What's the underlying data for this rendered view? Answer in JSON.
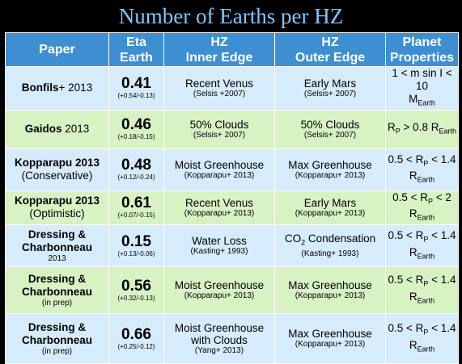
{
  "title": "Number of Earths per HZ",
  "headers": {
    "paper": "Paper",
    "eta_1": "Eta",
    "eta_2": "Earth",
    "inner_1": "HZ",
    "inner_2": "Inner Edge",
    "outer_1": "HZ",
    "outer_2": "Outer Edge",
    "planet_1": "Planet",
    "planet_2": "Properties"
  },
  "rows": [
    {
      "paper_bold": "Bonfils",
      "paper_rest": "+ 2013",
      "paper_line2": "",
      "paper_sub": "",
      "eta": "0.41",
      "eta_err": "(+0.54/-0.13)",
      "inner": "Recent Venus",
      "inner_ref": "(Selsis +2007)",
      "outer": "Early Mars",
      "outer_ref": "(Selsis+ 2007)",
      "prop_1": "1 < m sin I < 10",
      "prop_2": "M",
      "prop_2_sub": "Earth"
    },
    {
      "paper_bold": "Gaidos",
      "paper_rest": " 2013",
      "eta": "0.46",
      "eta_err": "(+0.18/-0.15)",
      "inner": "50% Clouds",
      "inner_ref": "(Selsis+ 2007)",
      "outer": "50% Clouds",
      "outer_ref": "(Selsis+ 2007)",
      "prop_a": "R",
      "prop_a_sub": "P",
      "prop_b": " > 0.8 R",
      "prop_b_sub": "Earth"
    },
    {
      "paper_1": "Kopparapu 2013",
      "paper_2": "(Conservative)",
      "eta": "0.48",
      "eta_err": "(+0.12/-0.24)",
      "inner": "Moist Greenhouse",
      "inner_ref": "(Kopparapu+ 2013)",
      "outer": "Max Greenhouse",
      "outer_ref": "(Kopparapu+ 2013)",
      "prop_a": "0.5 < R",
      "prop_a_sub": "P",
      "prop_b": " < 1.4",
      "prop_c": "R",
      "prop_c_sub": "Earth"
    },
    {
      "paper_1": "Kopparapu 2013",
      "paper_2": "(Optimistic)",
      "eta": "0.61",
      "eta_err": "(+0.07/-0.15)",
      "inner": "Recent Venus",
      "inner_ref": "(Kopparapu+ 2013)",
      "outer": "Early Mars",
      "outer_ref": "(Kopparapu+ 2013)",
      "prop_a": "0.5 < R",
      "prop_a_sub": "P",
      "prop_b": " < 2",
      "prop_c": "R",
      "prop_c_sub": "Earth"
    },
    {
      "paper_1": "Dressing &",
      "paper_2": "Charbonneau",
      "paper_sub": "2013",
      "eta": "0.15",
      "eta_err": "(+0.13/-0.06)",
      "inner": "Water Loss",
      "inner_ref": "(Kasting+ 1993)",
      "outer_a": "CO",
      "outer_a_sub": "2",
      "outer_b": " Condensation",
      "outer_ref": "(Kasting+ 1993)",
      "prop_a": "0.5 < R",
      "prop_a_sub": "P",
      "prop_b": " < 1.4",
      "prop_c": "R",
      "prop_c_sub": "Earth"
    },
    {
      "paper_1": "Dressing &",
      "paper_2": "Charbonneau",
      "paper_sub": "(in prep)",
      "eta": "0.56",
      "eta_err": "(+0.32/-0.13)",
      "inner": "Moist Greenhouse",
      "inner_ref": "(Kopparapu+ 2013)",
      "outer": "Max Greenhouse",
      "outer_ref": "(Kopparapu+ 2013)",
      "prop_a": "0.5 < R",
      "prop_a_sub": "P",
      "prop_b": " < 1.4",
      "prop_c": "R",
      "prop_c_sub": "Earth"
    },
    {
      "paper_1": "Dressing &",
      "paper_2": "Charbonneau",
      "paper_sub": "(in prep)",
      "eta": "0.66",
      "eta_err": "(+0.25/-0.12)",
      "inner": "Moist Greenhouse",
      "inner_2": "with Clouds",
      "inner_ref": "(Yang+ 2013)",
      "outer": "Max Greenhouse",
      "outer_ref": "(Kopparapu+ 2013)",
      "prop_a": "0.5 < R",
      "prop_a_sub": "P",
      "prop_b": " < 1.4",
      "prop_c": "R",
      "prop_c_sub": "Earth"
    }
  ]
}
